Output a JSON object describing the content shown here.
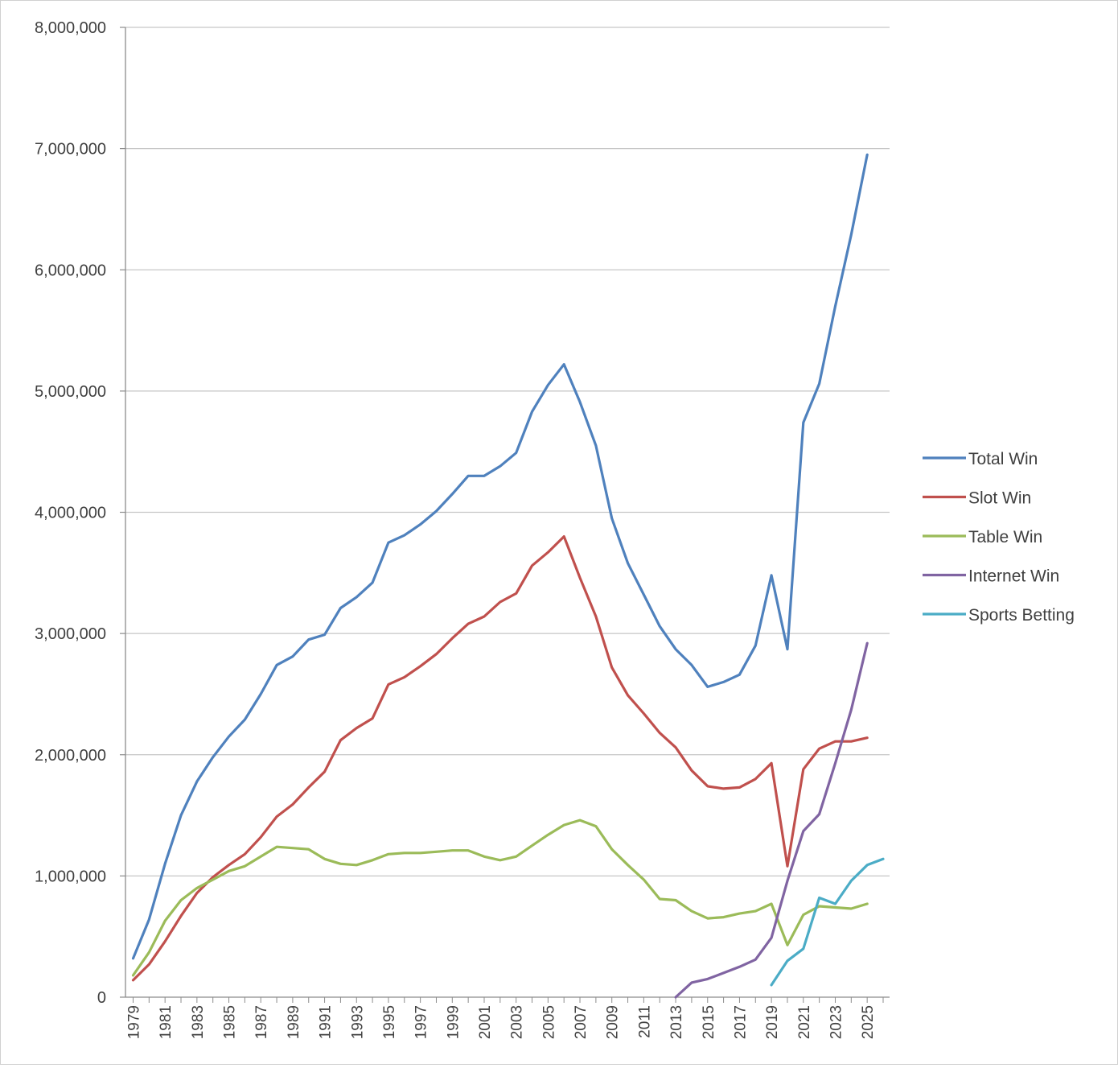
{
  "chart_data": {
    "type": "line",
    "title": "",
    "xlabel": "",
    "ylabel": "",
    "ylim": [
      0,
      8000000
    ],
    "yticks": [
      0,
      1000000,
      2000000,
      3000000,
      4000000,
      5000000,
      6000000,
      7000000,
      8000000
    ],
    "ytick_labels": [
      "0",
      "1,000,000",
      "2,000,000",
      "3,000,000",
      "4,000,000",
      "5,000,000",
      "6,000,000",
      "7,000,000",
      "8,000,000"
    ],
    "xlim": [
      1979,
      2026
    ],
    "xtick_labels": [
      "1979",
      "1981",
      "1983",
      "1985",
      "1987",
      "1989",
      "1991",
      "1993",
      "1995",
      "1997",
      "1999",
      "2001",
      "2003",
      "2005",
      "2007",
      "2009",
      "2011",
      "2013",
      "2015",
      "2017",
      "2019",
      "2021",
      "2023",
      "2025"
    ],
    "grid": true,
    "legend_position": "right",
    "series": [
      {
        "name": "Total Win",
        "color": "#4f81bd",
        "x": [
          1979,
          1980,
          1981,
          1982,
          1983,
          1984,
          1985,
          1986,
          1987,
          1988,
          1989,
          1990,
          1991,
          1992,
          1993,
          1994,
          1995,
          1996,
          1997,
          1998,
          1999,
          2000,
          2001,
          2002,
          2003,
          2004,
          2005,
          2006,
          2007,
          2008,
          2009,
          2010,
          2011,
          2012,
          2013,
          2014,
          2015,
          2016,
          2017,
          2018,
          2019,
          2020,
          2021,
          2022,
          2023,
          2024,
          2025
        ],
        "values": [
          320000,
          640000,
          1100000,
          1500000,
          1780000,
          1980000,
          2150000,
          2290000,
          2500000,
          2740000,
          2810000,
          2950000,
          2990000,
          3210000,
          3300000,
          3420000,
          3750000,
          3810000,
          3900000,
          4010000,
          4150000,
          4300000,
          4300000,
          4380000,
          4490000,
          4830000,
          5050000,
          5220000,
          4910000,
          4550000,
          3950000,
          3580000,
          3320000,
          3060000,
          2870000,
          2740000,
          2560000,
          2600000,
          2660000,
          2900000,
          3480000,
          2870000,
          4740000,
          5060000,
          5700000,
          6290000,
          6950000
        ]
      },
      {
        "name": "Slot Win",
        "color": "#c0504d",
        "x": [
          1979,
          1980,
          1981,
          1982,
          1983,
          1984,
          1985,
          1986,
          1987,
          1988,
          1989,
          1990,
          1991,
          1992,
          1993,
          1994,
          1995,
          1996,
          1997,
          1998,
          1999,
          2000,
          2001,
          2002,
          2003,
          2004,
          2005,
          2006,
          2007,
          2008,
          2009,
          2010,
          2011,
          2012,
          2013,
          2014,
          2015,
          2016,
          2017,
          2018,
          2019,
          2020,
          2021,
          2022,
          2023,
          2024,
          2025
        ],
        "values": [
          140000,
          270000,
          460000,
          670000,
          860000,
          990000,
          1090000,
          1180000,
          1320000,
          1490000,
          1590000,
          1730000,
          1860000,
          2120000,
          2220000,
          2300000,
          2580000,
          2640000,
          2730000,
          2830000,
          2960000,
          3080000,
          3140000,
          3260000,
          3330000,
          3560000,
          3670000,
          3800000,
          3460000,
          3140000,
          2720000,
          2490000,
          2340000,
          2180000,
          2060000,
          1870000,
          1740000,
          1720000,
          1730000,
          1800000,
          1930000,
          1080000,
          1880000,
          2050000,
          2110000,
          2110000,
          2140000
        ]
      },
      {
        "name": "Table Win",
        "color": "#9bbb59",
        "x": [
          1979,
          1980,
          1981,
          1982,
          1983,
          1984,
          1985,
          1986,
          1987,
          1988,
          1989,
          1990,
          1991,
          1992,
          1993,
          1994,
          1995,
          1996,
          1997,
          1998,
          1999,
          2000,
          2001,
          2002,
          2003,
          2004,
          2005,
          2006,
          2007,
          2008,
          2009,
          2010,
          2011,
          2012,
          2013,
          2014,
          2015,
          2016,
          2017,
          2018,
          2019,
          2020,
          2021,
          2022,
          2023,
          2024,
          2025
        ],
        "values": [
          180000,
          370000,
          630000,
          800000,
          900000,
          970000,
          1040000,
          1080000,
          1160000,
          1240000,
          1230000,
          1220000,
          1140000,
          1100000,
          1090000,
          1130000,
          1180000,
          1190000,
          1190000,
          1200000,
          1210000,
          1210000,
          1160000,
          1130000,
          1160000,
          1250000,
          1340000,
          1420000,
          1460000,
          1410000,
          1220000,
          1090000,
          970000,
          810000,
          800000,
          710000,
          650000,
          660000,
          690000,
          710000,
          770000,
          430000,
          680000,
          750000,
          740000,
          730000,
          770000
        ]
      },
      {
        "name": "Internet Win",
        "color": "#8064a2",
        "x": [
          2013,
          2014,
          2015,
          2016,
          2017,
          2018,
          2019,
          2020,
          2021,
          2022,
          2023,
          2024,
          2025
        ],
        "values": [
          0,
          120000,
          150000,
          200000,
          250000,
          310000,
          490000,
          960000,
          1370000,
          1510000,
          1930000,
          2370000,
          2920000
        ]
      },
      {
        "name": "Sports Betting",
        "color": "#4bacc6",
        "x": [
          2019,
          2020,
          2021,
          2022,
          2023,
          2024,
          2025,
          2026
        ],
        "values": [
          100000,
          300000,
          400000,
          820000,
          770000,
          960000,
          1090000,
          1140000
        ]
      }
    ]
  }
}
